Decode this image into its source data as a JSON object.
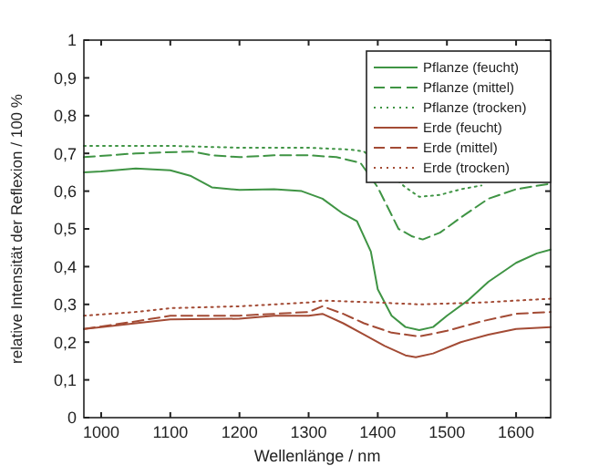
{
  "chart_data": {
    "type": "line",
    "xlabel": "Wellenlänge / nm",
    "ylabel": "relative Intensität der Reflexion / 100 %",
    "xlim": [
      975,
      1650
    ],
    "ylim": [
      0,
      1
    ],
    "xticks": [
      1000,
      1100,
      1200,
      1300,
      1400,
      1500,
      1600
    ],
    "yticks": [
      0,
      {
        "value": 0.1,
        "label": "0,1"
      },
      {
        "value": 0.2,
        "label": "0,2"
      },
      {
        "value": 0.3,
        "label": "0,3"
      },
      {
        "value": 0.4,
        "label": "0,4"
      },
      {
        "value": 0.5,
        "label": "0,5"
      },
      {
        "value": 0.6,
        "label": "0,6"
      },
      {
        "value": 0.7,
        "label": "0,7"
      },
      {
        "value": 0.8,
        "label": "0,8"
      },
      {
        "value": 0.9,
        "label": "0,9"
      },
      1
    ],
    "grid": false,
    "legend": "top right",
    "series": [
      {
        "name": "Pflanze (feucht)",
        "color": "#3f9444",
        "line_style": "solid",
        "x": [
          975,
          1000,
          1050,
          1100,
          1130,
          1160,
          1200,
          1250,
          1290,
          1320,
          1350,
          1370,
          1390,
          1400,
          1420,
          1440,
          1460,
          1480,
          1500,
          1530,
          1560,
          1600,
          1630,
          1650
        ],
        "values": [
          0.65,
          0.652,
          0.66,
          0.655,
          0.64,
          0.61,
          0.603,
          0.605,
          0.6,
          0.58,
          0.54,
          0.52,
          0.44,
          0.34,
          0.27,
          0.24,
          0.232,
          0.24,
          0.27,
          0.31,
          0.36,
          0.41,
          0.435,
          0.445
        ]
      },
      {
        "name": "Pflanze (mittel)",
        "color": "#3f9444",
        "line_style": "dashed",
        "x": [
          975,
          1050,
          1130,
          1160,
          1200,
          1250,
          1300,
          1340,
          1375,
          1400,
          1430,
          1450,
          1465,
          1490,
          1520,
          1560,
          1600,
          1650
        ],
        "values": [
          0.69,
          0.7,
          0.705,
          0.695,
          0.69,
          0.695,
          0.695,
          0.69,
          0.675,
          0.61,
          0.5,
          0.48,
          0.472,
          0.49,
          0.53,
          0.58,
          0.605,
          0.62
        ]
      },
      {
        "name": "Pflanze (trocken)",
        "color": "#3f9444",
        "line_style": "dotted",
        "x": [
          975,
          1100,
          1200,
          1300,
          1360,
          1380,
          1440,
          1460,
          1490,
          1520,
          1550
        ],
        "values": [
          0.72,
          0.72,
          0.715,
          0.715,
          0.71,
          0.705,
          0.61,
          0.585,
          0.59,
          0.605,
          0.615
        ]
      },
      {
        "name": "Erde (feucht)",
        "color": "#a34b35",
        "line_style": "solid",
        "x": [
          975,
          1000,
          1050,
          1100,
          1200,
          1250,
          1300,
          1320,
          1350,
          1380,
          1410,
          1440,
          1455,
          1480,
          1520,
          1560,
          1600,
          1650
        ],
        "values": [
          0.235,
          0.24,
          0.25,
          0.26,
          0.262,
          0.27,
          0.27,
          0.275,
          0.25,
          0.22,
          0.19,
          0.165,
          0.16,
          0.17,
          0.2,
          0.22,
          0.235,
          0.24
        ]
      },
      {
        "name": "Erde (mittel)",
        "color": "#a34b35",
        "line_style": "dashed",
        "x": [
          975,
          1050,
          1100,
          1200,
          1250,
          1300,
          1320,
          1350,
          1380,
          1420,
          1460,
          1500,
          1550,
          1600,
          1650
        ],
        "values": [
          0.235,
          0.255,
          0.27,
          0.27,
          0.275,
          0.28,
          0.295,
          0.275,
          0.25,
          0.225,
          0.215,
          0.23,
          0.255,
          0.275,
          0.28
        ]
      },
      {
        "name": "Erde (trocken)",
        "color": "#a34b35",
        "line_style": "dotted",
        "x": [
          975,
          1050,
          1100,
          1200,
          1300,
          1320,
          1400,
          1460,
          1550,
          1650
        ],
        "values": [
          0.27,
          0.28,
          0.29,
          0.295,
          0.305,
          0.31,
          0.305,
          0.3,
          0.305,
          0.315
        ]
      }
    ]
  }
}
